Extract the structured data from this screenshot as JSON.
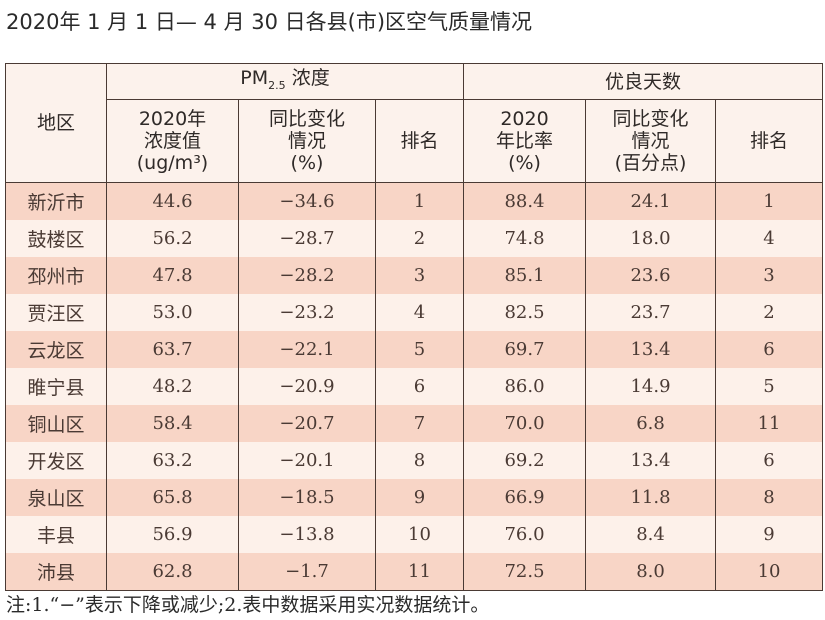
{
  "title": "2020年 1 月 1 日— 4 月 30 日各县(市)区空气质量情况",
  "headers": {
    "region": "地区",
    "pm_group_main": "PM",
    "pm_group_sub": "2.5",
    "pm_group_suffix": " 浓度",
    "good_group": "优良天数",
    "pm_value": [
      "2020年",
      "浓度值",
      "(ug/m³)"
    ],
    "pm_change": [
      "同比变化",
      "情况",
      "(%)"
    ],
    "pm_rank": "排名",
    "good_rate": [
      "2020",
      "年比率",
      "(%)"
    ],
    "good_change": [
      "同比变化",
      "情况",
      "(百分点)"
    ],
    "good_rank": "排名"
  },
  "rows": [
    [
      "新沂市",
      "44.6",
      "−34.6",
      "1",
      "88.4",
      "24.1",
      "1"
    ],
    [
      "鼓楼区",
      "56.2",
      "−28.7",
      "2",
      "74.8",
      "18.0",
      "4"
    ],
    [
      "邳州市",
      "47.8",
      "−28.2",
      "3",
      "85.1",
      "23.6",
      "3"
    ],
    [
      "贾汪区",
      "53.0",
      "−23.2",
      "4",
      "82.5",
      "23.7",
      "2"
    ],
    [
      "云龙区",
      "63.7",
      "−22.1",
      "5",
      "69.7",
      "13.4",
      "6"
    ],
    [
      "睢宁县",
      "48.2",
      "−20.9",
      "6",
      "86.0",
      "14.9",
      "5"
    ],
    [
      "铜山区",
      "58.4",
      "−20.7",
      "7",
      "70.0",
      "6.8",
      "11"
    ],
    [
      "开发区",
      "63.2",
      "−20.1",
      "8",
      "69.2",
      "13.4",
      "6"
    ],
    [
      "泉山区",
      "65.8",
      "−18.5",
      "9",
      "66.9",
      "11.8",
      "8"
    ],
    [
      "丰县",
      "56.9",
      "−13.8",
      "10",
      "76.0",
      "8.4",
      "9"
    ],
    [
      "沛县",
      "62.8",
      "−1.7",
      "11",
      "72.5",
      "8.0",
      "10"
    ]
  ],
  "note": "注:1.“−”表示下降或减少;2.表中数据采用实况数据统计。",
  "colors": {
    "row_pink": "#f8d5c6",
    "row_light": "#fdf1ea",
    "header_bg": "#fcf2ec"
  }
}
